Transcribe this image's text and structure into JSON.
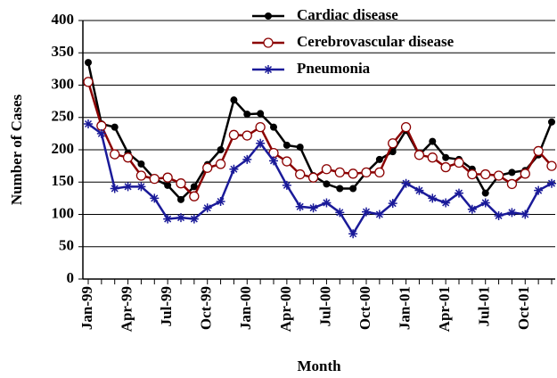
{
  "chart_data": {
    "type": "line",
    "x_label": "Month",
    "y_label": "Number of Cases",
    "categories": [
      "Jan-99",
      null,
      null,
      "Apr-99",
      null,
      null,
      "Jul-99",
      null,
      null,
      "Oct-99",
      null,
      null,
      "Jan-00",
      null,
      null,
      "Apr-00",
      null,
      null,
      "Jul-00",
      null,
      null,
      "Oct-00",
      null,
      null,
      "Jan-01",
      null,
      null,
      "Apr-01",
      null,
      null,
      "Jul-01",
      null,
      null,
      "Oct-01",
      null,
      null
    ],
    "series": [
      {
        "name": "Cardiac disease",
        "color": "#000000",
        "marker": "filled-circle",
        "values": [
          335,
          240,
          235,
          195,
          178,
          155,
          145,
          123,
          143,
          177,
          200,
          277,
          255,
          256,
          235,
          207,
          204,
          160,
          147,
          140,
          140,
          165,
          185,
          197,
          230,
          192,
          213,
          188,
          185,
          170,
          133,
          160,
          165,
          168,
          192,
          243
        ]
      },
      {
        "name": "Cerebrovascular disease",
        "color": "#8b0000",
        "marker": "open-circle",
        "values": [
          305,
          237,
          193,
          188,
          160,
          155,
          157,
          148,
          128,
          172,
          178,
          223,
          222,
          235,
          195,
          182,
          162,
          157,
          170,
          165,
          163,
          165,
          165,
          210,
          235,
          192,
          188,
          173,
          180,
          162,
          162,
          160,
          147,
          163,
          198,
          175
        ]
      },
      {
        "name": "Pneumonia",
        "color": "#1a1a99",
        "marker": "asterisk",
        "values": [
          240,
          225,
          140,
          143,
          143,
          125,
          93,
          95,
          93,
          110,
          120,
          170,
          185,
          210,
          183,
          145,
          112,
          110,
          118,
          103,
          70,
          104,
          100,
          117,
          148,
          137,
          125,
          118,
          133,
          108,
          118,
          98,
          103,
          100,
          137,
          148
        ]
      }
    ],
    "ylim": [
      0,
      400
    ],
    "yticks": [
      0,
      50,
      100,
      150,
      200,
      250,
      300,
      350,
      400
    ],
    "grid": true,
    "legend": "top-right"
  }
}
